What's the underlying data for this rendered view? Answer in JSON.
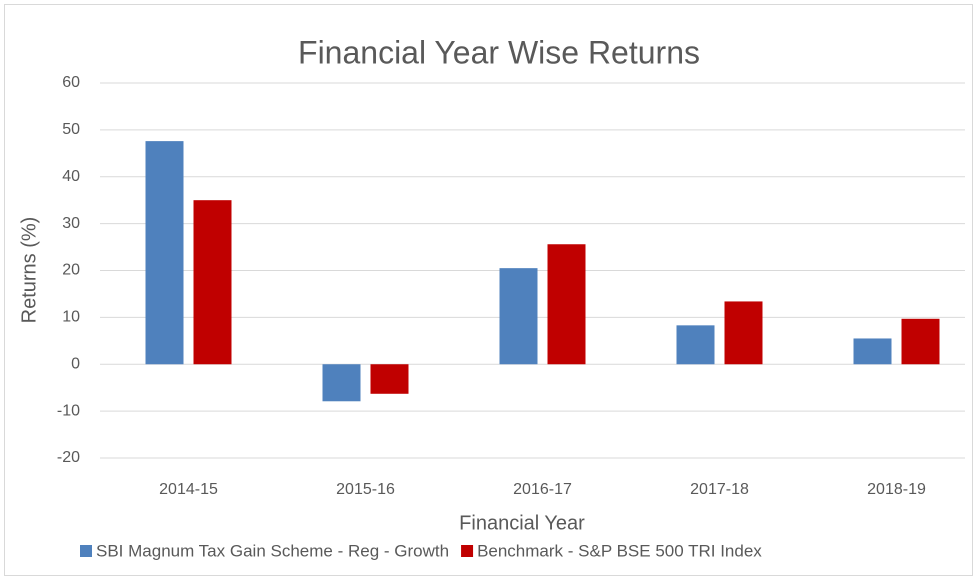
{
  "chart_data": {
    "type": "bar",
    "title": "Financial Year Wise Returns",
    "x_label": "Financial Year",
    "y_label": "Returns (%)",
    "categories": [
      "2014-15",
      "2015-16",
      "2016-17",
      "2017-18",
      "2018-19"
    ],
    "series": [
      {
        "name": "SBI Magnum Tax Gain Scheme - Reg - Growth",
        "color": "#4f81bd",
        "values": [
          47.6,
          -7.9,
          20.5,
          8.3,
          5.5
        ]
      },
      {
        "name": "Benchmark - S&P BSE 500 TRI Index",
        "color": "#c00000",
        "values": [
          35.0,
          -6.3,
          25.6,
          13.4,
          9.7
        ]
      }
    ],
    "ylim": [
      -20,
      60
    ],
    "yticks": [
      -20,
      -10,
      0,
      10,
      20,
      30,
      40,
      50,
      60
    ],
    "grid": true,
    "legend": "bottom"
  }
}
